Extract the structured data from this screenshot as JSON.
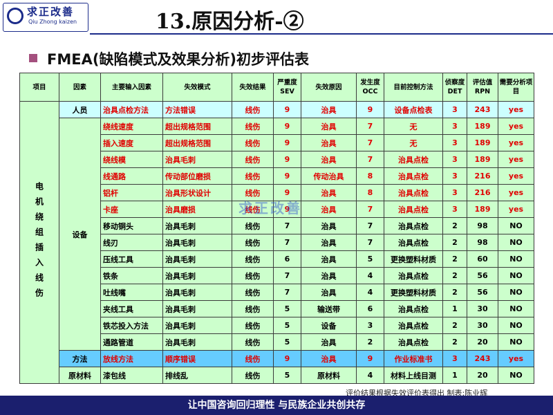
{
  "header": {
    "logo_title": "求正改善",
    "logo_sub": "Qiu Zhong kaizen",
    "title": "13.原因分析-②"
  },
  "subtitle": "FMEA(缺陷模式及效果分析)初步评估表",
  "table": {
    "columns": [
      "项目",
      "因素",
      "主要输入因素",
      "失效模式",
      "失效结果",
      "严重度 SEV",
      "失效原因",
      "发生度 OCC",
      "目前控制方法",
      "侦察度 DET",
      "评估值 RPN",
      "需要分析项目"
    ],
    "item": "电机绕组插入线伤",
    "rows": [
      {
        "factor": "人员",
        "cells": [
          "治具点检方法",
          "方法错误",
          "线伤",
          "9",
          "治具",
          "9",
          "设备点检表",
          "3",
          "243",
          "yes"
        ],
        "text_color": "#e00000",
        "fill": "#ccffff"
      },
      {
        "factor": "设备",
        "cells": [
          "绕线速度",
          "超出规格范围",
          "线伤",
          "9",
          "治具",
          "7",
          "无",
          "3",
          "189",
          "yes"
        ],
        "text_color": "#e00000",
        "fill": "#ccffcc"
      },
      {
        "cells": [
          "插入速度",
          "超出规格范围",
          "线伤",
          "9",
          "治具",
          "7",
          "无",
          "3",
          "189",
          "yes"
        ],
        "text_color": "#e00000",
        "fill": "#ccffcc"
      },
      {
        "cells": [
          "绕线模",
          "治具毛刺",
          "线伤",
          "9",
          "治具",
          "7",
          "治具点检",
          "3",
          "189",
          "yes"
        ],
        "text_color": "#e00000",
        "fill": "#ccffcc"
      },
      {
        "cells": [
          "线通路",
          "传动部位磨损",
          "线伤",
          "9",
          "传动治具",
          "8",
          "治具点检",
          "3",
          "216",
          "yes"
        ],
        "text_color": "#e00000",
        "fill": "#ccffcc"
      },
      {
        "cells": [
          "铝杆",
          "治具形状设计",
          "线伤",
          "9",
          "治具",
          "8",
          "治具点检",
          "3",
          "216",
          "yes"
        ],
        "text_color": "#e00000",
        "fill": "#ccffcc"
      },
      {
        "cells": [
          "卡座",
          "治具磨损",
          "线伤",
          "9",
          "治具",
          "7",
          "治具点检",
          "3",
          "189",
          "yes"
        ],
        "text_color": "#e00000",
        "fill": "#ccffcc"
      },
      {
        "cells": [
          "移动铜头",
          "治具毛刺",
          "线伤",
          "7",
          "治具",
          "7",
          "治具点检",
          "2",
          "98",
          "NO"
        ],
        "text_color": "#000000",
        "fill": "#ccffcc"
      },
      {
        "cells": [
          "线刃",
          "治具毛刺",
          "线伤",
          "7",
          "治具",
          "7",
          "治具点检",
          "2",
          "98",
          "NO"
        ],
        "text_color": "#000000",
        "fill": "#ccffcc"
      },
      {
        "cells": [
          "压线工具",
          "治具毛刺",
          "线伤",
          "6",
          "治具",
          "5",
          "更换塑料材质",
          "2",
          "60",
          "NO"
        ],
        "text_color": "#000000",
        "fill": "#ccffcc"
      },
      {
        "cells": [
          "铁条",
          "治具毛刺",
          "线伤",
          "7",
          "治具",
          "4",
          "治具点检",
          "2",
          "56",
          "NO"
        ],
        "text_color": "#000000",
        "fill": "#ccffcc"
      },
      {
        "cells": [
          "吐线嘴",
          "治具毛刺",
          "线伤",
          "7",
          "治具",
          "4",
          "更换塑料材质",
          "2",
          "56",
          "NO"
        ],
        "text_color": "#000000",
        "fill": "#ccffcc"
      },
      {
        "cells": [
          "夹线工具",
          "治具毛刺",
          "线伤",
          "5",
          "输送带",
          "6",
          "治具点检",
          "1",
          "30",
          "NO"
        ],
        "text_color": "#000000",
        "fill": "#ccffcc"
      },
      {
        "cells": [
          "铁芯投入方法",
          "治具毛刺",
          "线伤",
          "5",
          "设备",
          "3",
          "治具点检",
          "2",
          "30",
          "NO"
        ],
        "text_color": "#000000",
        "fill": "#ccffcc"
      },
      {
        "cells": [
          "通路管道",
          "治具毛刺",
          "线伤",
          "5",
          "治具",
          "2",
          "治具点检",
          "2",
          "20",
          "NO"
        ],
        "text_color": "#000000",
        "fill": "#ccffcc"
      },
      {
        "factor": "方法",
        "cells": [
          "放线方法",
          "顺序错误",
          "线伤",
          "9",
          "治具",
          "9",
          "作业标准书",
          "3",
          "243",
          "yes"
        ],
        "text_color": "#e00000",
        "fill": "#66ccff"
      },
      {
        "factor": "原材料",
        "cells": [
          "漆包线",
          "排线乱",
          "线伤",
          "5",
          "原材料",
          "4",
          "材料上线目测",
          "1",
          "20",
          "NO"
        ],
        "text_color": "#000000",
        "fill": "#ccffcc"
      }
    ]
  },
  "note": "评价结果根据失效评价表得出 制表:陈业辉",
  "footer": "让中国咨询回归理性 与民族企业共创共存"
}
